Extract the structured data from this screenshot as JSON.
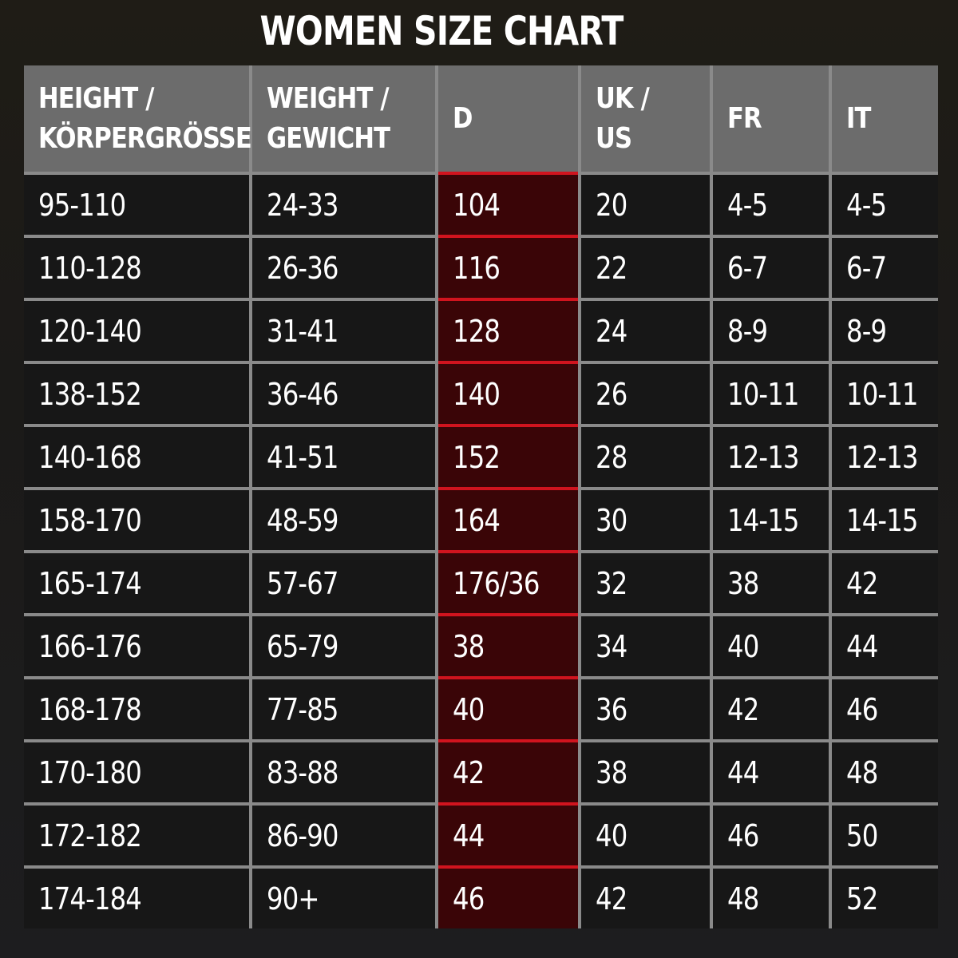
{
  "header": {
    "title": "WOMEN SIZE CHART"
  },
  "table": {
    "columns": [
      "HEIGHT / KÖRPERGRÖSSE",
      "WEIGHT / GEWICHT",
      "D",
      "UK / US",
      "FR",
      "IT"
    ],
    "rows": [
      [
        "95-110",
        "24-33",
        "104",
        "20",
        "4-5",
        "4-5"
      ],
      [
        "110-128",
        "26-36",
        "116",
        "22",
        "6-7",
        "6-7"
      ],
      [
        "120-140",
        "31-41",
        "128",
        "24",
        "8-9",
        "8-9"
      ],
      [
        "138-152",
        "36-46",
        "140",
        "26",
        "10-11",
        "10-11"
      ],
      [
        "140-168",
        "41-51",
        "152",
        "28",
        "12-13",
        "12-13"
      ],
      [
        "158-170",
        "48-59",
        "164",
        "30",
        "14-15",
        "14-15"
      ],
      [
        "165-174",
        "57-67",
        "176/36",
        "32",
        "38",
        "42"
      ],
      [
        "166-176",
        "65-79",
        "38",
        "34",
        "40",
        "44"
      ],
      [
        "168-178",
        "77-85",
        "40",
        "36",
        "42",
        "46"
      ],
      [
        "170-180",
        "83-88",
        "42",
        "38",
        "44",
        "48"
      ],
      [
        "172-182",
        "86-90",
        "44",
        "40",
        "46",
        "50"
      ],
      [
        "174-184",
        "90+",
        "46",
        "42",
        "48",
        "52"
      ]
    ]
  }
}
